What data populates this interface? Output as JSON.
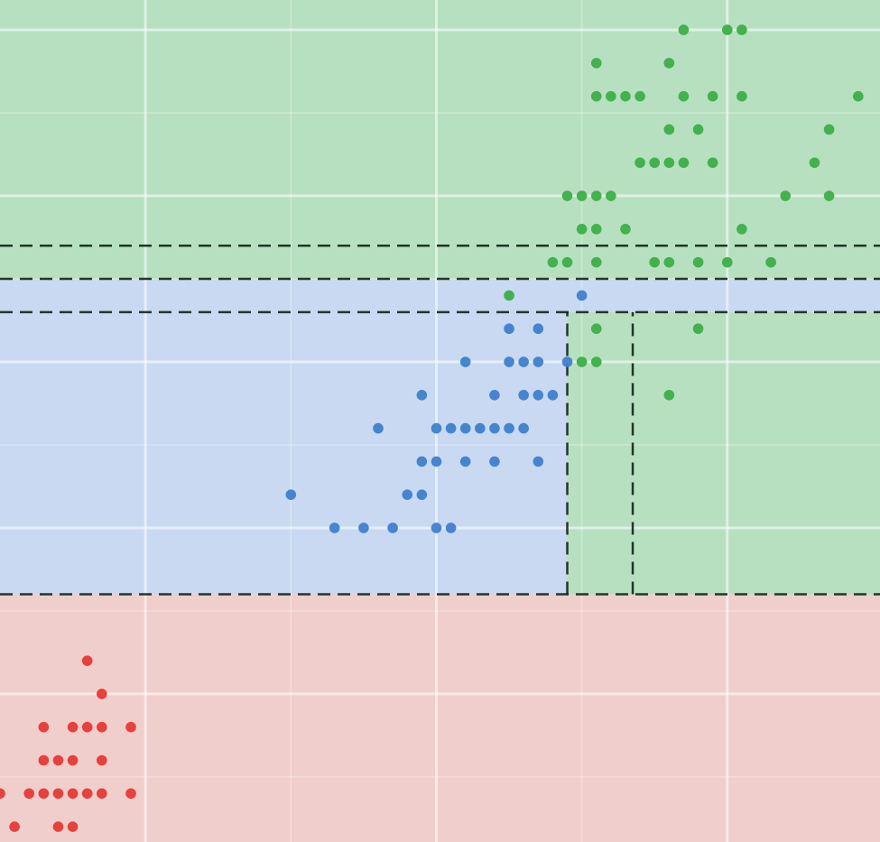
{
  "chart_data": {
    "type": "scatter",
    "xlim": [
      1.0,
      7.05
    ],
    "ylim": [
      0.054,
      2.59
    ],
    "xticks": [
      2,
      4,
      6
    ],
    "xminorticks": [
      3,
      5
    ],
    "yticks": [
      0.5,
      1.0,
      1.5,
      2.0,
      2.5
    ],
    "yminorticks": [
      0.25,
      0.75,
      1.25,
      1.75,
      2.25
    ],
    "grid": true,
    "regions": [
      {
        "color": "#f0cecb",
        "x": [
          1.0,
          7.05
        ],
        "y": [
          0.054,
          0.8
        ]
      },
      {
        "color": "#c8d9f1",
        "x": [
          1.0,
          4.9
        ],
        "y": [
          0.8,
          1.75
        ]
      },
      {
        "color": "#c8d9f1",
        "x": [
          4.9,
          7.05
        ],
        "y": [
          1.65,
          1.75
        ]
      },
      {
        "color": "#b7e0c0",
        "x": [
          4.9,
          7.05
        ],
        "y": [
          0.8,
          1.65
        ]
      },
      {
        "color": "#b7e0c0",
        "x": [
          1.0,
          7.05
        ],
        "y": [
          1.75,
          2.59
        ]
      }
    ],
    "boundaries": [
      {
        "x": [
          1.0,
          7.05
        ],
        "y": [
          0.8,
          0.8
        ]
      },
      {
        "x": [
          1.0,
          7.05
        ],
        "y": [
          1.65,
          1.65
        ]
      },
      {
        "x": [
          1.0,
          7.05
        ],
        "y": [
          1.75,
          1.75
        ]
      },
      {
        "x": [
          1.0,
          7.05
        ],
        "y": [
          1.85,
          1.85
        ]
      },
      {
        "x": [
          4.9,
          4.9
        ],
        "y": [
          0.8,
          1.65
        ]
      },
      {
        "x": [
          5.35,
          5.35
        ],
        "y": [
          0.8,
          1.65
        ]
      }
    ],
    "series": [
      {
        "color": "#e53935",
        "x": [
          1.6,
          1.7,
          1.3,
          1.5,
          1.6,
          1.7,
          1.9,
          1.3,
          1.4,
          1.5,
          1.7,
          1.0,
          1.2,
          1.3,
          1.4,
          1.5,
          1.6,
          1.7,
          1.9,
          1.1,
          1.4,
          1.5
        ],
        "y": [
          0.6,
          0.5,
          0.4,
          0.4,
          0.4,
          0.4,
          0.4,
          0.3,
          0.3,
          0.3,
          0.3,
          0.2,
          0.2,
          0.2,
          0.2,
          0.2,
          0.2,
          0.2,
          0.2,
          0.1,
          0.1,
          0.1
        ]
      },
      {
        "color": "#3f7fcc",
        "x": [
          5.0,
          4.5,
          4.7,
          4.2,
          4.5,
          4.6,
          4.7,
          4.9,
          3.9,
          4.4,
          4.6,
          4.7,
          4.8,
          3.6,
          4.0,
          4.1,
          4.2,
          4.3,
          4.4,
          4.5,
          4.6,
          3.9,
          4.0,
          4.2,
          4.4,
          4.7,
          3.0,
          3.8,
          3.9,
          3.3,
          3.5,
          3.7,
          4.0,
          4.1
        ],
        "y": [
          1.7,
          1.6,
          1.6,
          1.5,
          1.5,
          1.5,
          1.5,
          1.5,
          1.4,
          1.4,
          1.4,
          1.4,
          1.4,
          1.3,
          1.3,
          1.3,
          1.3,
          1.3,
          1.3,
          1.3,
          1.3,
          1.2,
          1.2,
          1.2,
          1.2,
          1.2,
          1.1,
          1.1,
          1.1,
          1.0,
          1.0,
          1.0,
          1.0,
          1.0
        ]
      },
      {
        "color": "#3cae46",
        "x": [
          5.7,
          6.0,
          6.1,
          5.1,
          5.6,
          5.1,
          5.2,
          5.3,
          5.4,
          5.7,
          5.9,
          6.1,
          6.9,
          5.6,
          5.8,
          6.7,
          5.4,
          5.5,
          5.6,
          5.7,
          5.9,
          6.6,
          4.9,
          5.0,
          5.1,
          5.2,
          6.4,
          6.7,
          5.0,
          5.1,
          5.3,
          6.1,
          4.8,
          4.9,
          5.1,
          5.5,
          5.6,
          5.8,
          6.0,
          6.3,
          4.5,
          5.1,
          5.8,
          5.0,
          5.1,
          5.6
        ],
        "y": [
          2.5,
          2.5,
          2.5,
          2.4,
          2.4,
          2.3,
          2.3,
          2.3,
          2.3,
          2.3,
          2.3,
          2.3,
          2.3,
          2.2,
          2.2,
          2.2,
          2.1,
          2.1,
          2.1,
          2.1,
          2.1,
          2.1,
          2.0,
          2.0,
          2.0,
          2.0,
          2.0,
          2.0,
          1.9,
          1.9,
          1.9,
          1.9,
          1.8,
          1.8,
          1.8,
          1.8,
          1.8,
          1.8,
          1.8,
          1.8,
          1.7,
          1.6,
          1.6,
          1.5,
          1.5,
          1.4
        ]
      }
    ]
  }
}
